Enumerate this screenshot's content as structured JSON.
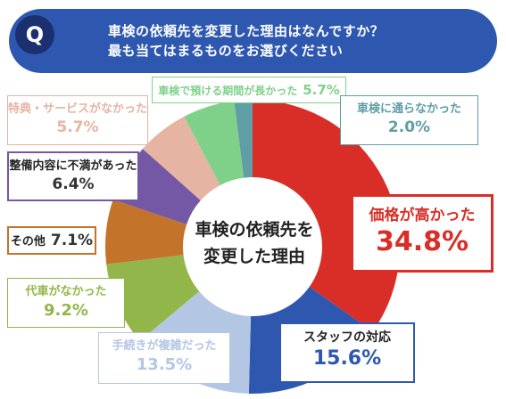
{
  "header": {
    "badge": "Q",
    "question_line1": "車検の依頼先を変更した理由はなんですか？",
    "question_line2": "最も当てはまるものをお選びください"
  },
  "chart_data": {
    "type": "pie",
    "center_label_line1": "車検の依頼先を",
    "center_label_line2": "変更した理由",
    "slices": [
      {
        "label": "価格が高かった",
        "value": 34.8,
        "display": "34.8%",
        "color": "#d92e28"
      },
      {
        "label": "スタッフの対応",
        "value": 15.6,
        "display": "15.6%",
        "color": "#2e58b0"
      },
      {
        "label": "手続きが複雑だった",
        "value": 13.5,
        "display": "13.5%",
        "color": "#b3c7e4"
      },
      {
        "label": "代車がなかった",
        "value": 9.2,
        "display": "9.2%",
        "color": "#93b64a"
      },
      {
        "label": "その他",
        "value": 7.1,
        "display": "7.1%",
        "color": "#c4732a"
      },
      {
        "label": "整備内容に不満があった",
        "value": 6.4,
        "display": "6.4%",
        "color": "#7458a6"
      },
      {
        "label": "特典・サービスがなかった",
        "value": 5.7,
        "display": "5.7%",
        "color": "#e6b4a3"
      },
      {
        "label": "車検で預ける期間が長かった",
        "value": 5.7,
        "display": "5.7%",
        "color": "#7fd18a"
      },
      {
        "label": "車検に通らなかった",
        "value": 2.0,
        "display": "2.0%",
        "color": "#5f9ea5"
      }
    ]
  }
}
